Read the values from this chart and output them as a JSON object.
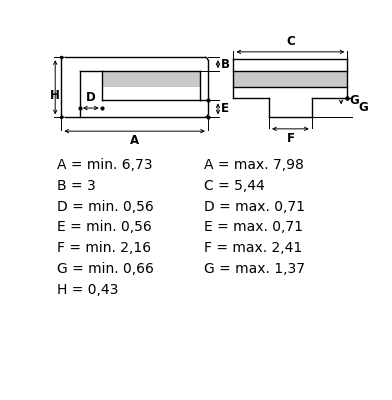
{
  "bg_color": "#ffffff",
  "line_color": "#000000",
  "fill_color": "#c8c8c8",
  "left_labels": [
    "A = min. 6,73",
    "B = 3",
    "D = min. 0,56",
    "E = min. 0,56",
    "F = min. 2,16",
    "G = min. 0,66",
    "H = 0,43"
  ],
  "right_labels": [
    "A = max. 7,98",
    "C = 5,44",
    "D = max. 0,71",
    "E = max. 0,71",
    "F = max. 2,41",
    "G = max. 1,37"
  ],
  "label_font_size": 10.0,
  "dim_font_size": 8.5,
  "lw": 1.0,
  "dim_lw": 0.7
}
